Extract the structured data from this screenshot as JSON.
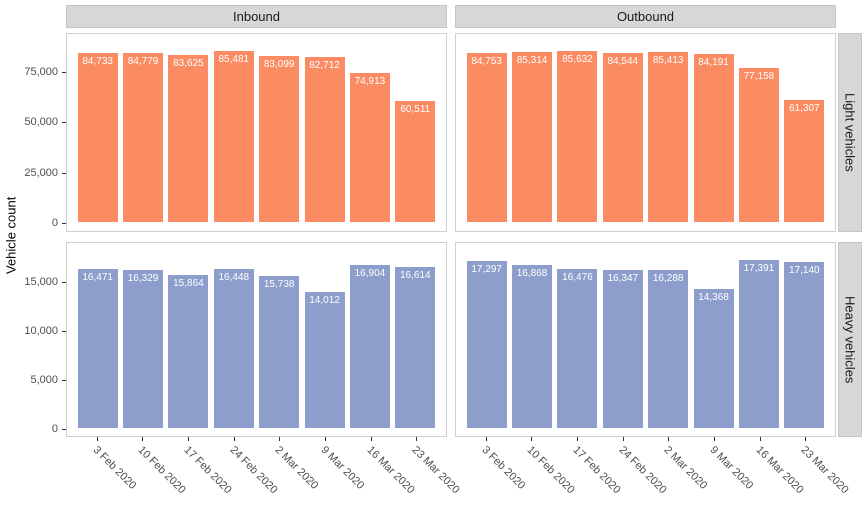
{
  "figure": {
    "background": "#ffffff",
    "colors": {
      "light_vehicles_bar": "#FA8B62",
      "heavy_vehicles_bar": "#8D9ECD",
      "strip_background": "#D7D7D7",
      "panel_border": "#D0D0D0",
      "bar_label_text": "#FFFFFF",
      "axis_text": "#4D4D4D"
    }
  },
  "chart_data": {
    "type": "bar",
    "title": "",
    "xlabel": "",
    "ylabel": "Vehicle count",
    "legend": "none",
    "grid": "off",
    "layout": "2x2 facet grid, column strips on top, row strips on right",
    "categories": [
      "3 Feb 2020",
      "10 Feb 2020",
      "17 Feb 2020",
      "24 Feb 2020",
      "2 Mar 2020",
      "9 Mar 2020",
      "16 Mar 2020",
      "23 Mar 2020"
    ],
    "col_facets": [
      "Inbound",
      "Outbound"
    ],
    "row_facets": [
      "Light vehicles",
      "Heavy vehicles"
    ],
    "rows": [
      {
        "label": "Light vehicles",
        "ticks": [
          0,
          25000,
          50000,
          75000
        ],
        "tick_labels": [
          "0",
          "25,000",
          "50,000",
          "75,000"
        ],
        "ylim": [
          -4300,
          94200
        ],
        "bar_color": "#FA8B62"
      },
      {
        "label": "Heavy vehicles",
        "ticks": [
          0,
          5000,
          10000,
          15000
        ],
        "tick_labels": [
          "0",
          "5,000",
          "10,000",
          "15,000"
        ],
        "ylim": [
          -870,
          19130
        ],
        "bar_color": "#8D9ECD"
      }
    ],
    "facets": [
      {
        "row": 0,
        "col": 0,
        "row_label": "Light vehicles",
        "col_label": "Inbound",
        "values": [
          84733,
          84779,
          83625,
          85481,
          83099,
          82712,
          74913,
          60511
        ]
      },
      {
        "row": 0,
        "col": 1,
        "row_label": "Light vehicles",
        "col_label": "Outbound",
        "values": [
          84753,
          85314,
          85632,
          84544,
          85413,
          84191,
          77158,
          61307
        ]
      },
      {
        "row": 1,
        "col": 0,
        "row_label": "Heavy vehicles",
        "col_label": "Inbound",
        "values": [
          16471,
          16329,
          15864,
          16448,
          15738,
          14012,
          16904,
          16614
        ]
      },
      {
        "row": 1,
        "col": 1,
        "row_label": "Heavy vehicles",
        "col_label": "Outbound",
        "values": [
          17297,
          16868,
          16476,
          16347,
          16288,
          14368,
          17391,
          17140
        ]
      }
    ]
  }
}
